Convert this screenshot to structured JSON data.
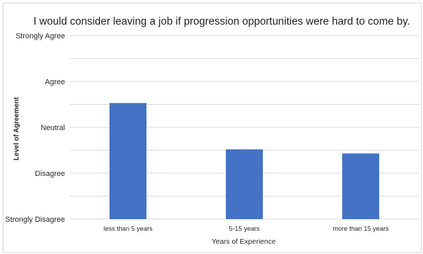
{
  "chart_data": {
    "type": "bar",
    "title": "I would consider leaving a job if progression opportunities were hard to come by.",
    "xlabel": "Years of Experience",
    "ylabel": "Level of Agreement",
    "categories": [
      "less than 5 years",
      "5-15 years",
      "more than 15 years"
    ],
    "values": [
      3.53,
      2.52,
      2.43
    ],
    "ylim": [
      1,
      5
    ],
    "y_tick_labels": [
      "Strongly Disagree",
      "Disagree",
      "Neutral",
      "Agree",
      "Strongly Agree"
    ],
    "grid": true,
    "bar_color": "#4472c4"
  }
}
